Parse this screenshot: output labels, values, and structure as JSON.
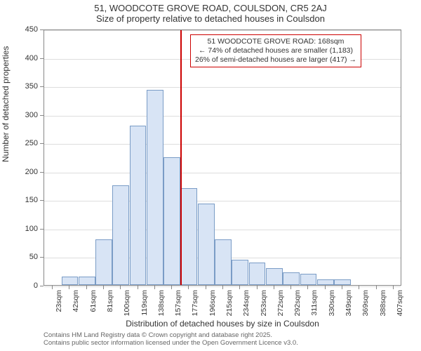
{
  "chart": {
    "type": "histogram",
    "title_line1": "51, WOODCOTE GROVE ROAD, COULSDON, CR5 2AJ",
    "title_line2": "Size of property relative to detached houses in Coulsdon",
    "title_fontsize": 13,
    "ylabel": "Number of detached properties",
    "xlabel": "Distribution of detached houses by size in Coulsdon",
    "label_fontsize": 12,
    "ylim": [
      0,
      450
    ],
    "ytick_step": 50,
    "y_ticks": [
      0,
      50,
      100,
      150,
      200,
      250,
      300,
      350,
      400,
      450
    ],
    "x_categories": [
      "23sqm",
      "42sqm",
      "61sqm",
      "81sqm",
      "100sqm",
      "119sqm",
      "138sqm",
      "157sqm",
      "177sqm",
      "196sqm",
      "215sqm",
      "234sqm",
      "253sqm",
      "272sqm",
      "292sqm",
      "311sqm",
      "330sqm",
      "349sqm",
      "369sqm",
      "388sqm",
      "407sqm"
    ],
    "values": [
      0,
      15,
      15,
      80,
      175,
      280,
      343,
      225,
      170,
      143,
      80,
      45,
      40,
      30,
      22,
      20,
      10,
      10,
      0,
      0,
      0
    ],
    "bar_fill": "#d8e4f5",
    "bar_border": "#7a9cc6",
    "background_color": "#ffffff",
    "grid_color": "#dddddd",
    "axis_color": "#888888",
    "marker": {
      "position_index": 8.0,
      "color": "#cc0000",
      "width": 2
    },
    "annotation": {
      "line1": "51 WOODCOTE GROVE ROAD: 168sqm",
      "line2": "← 74% of detached houses are smaller (1,183)",
      "line3": "26% of semi-detached houses are larger (417) →",
      "border_color": "#cc0000",
      "fontsize": 10.5
    },
    "footer_line1": "Contains HM Land Registry data © Crown copyright and database right 2025.",
    "footer_line2": "Contains public sector information licensed under the Open Government Licence v3.0.",
    "footer_color": "#666666",
    "footer_fontsize": 9.5
  }
}
